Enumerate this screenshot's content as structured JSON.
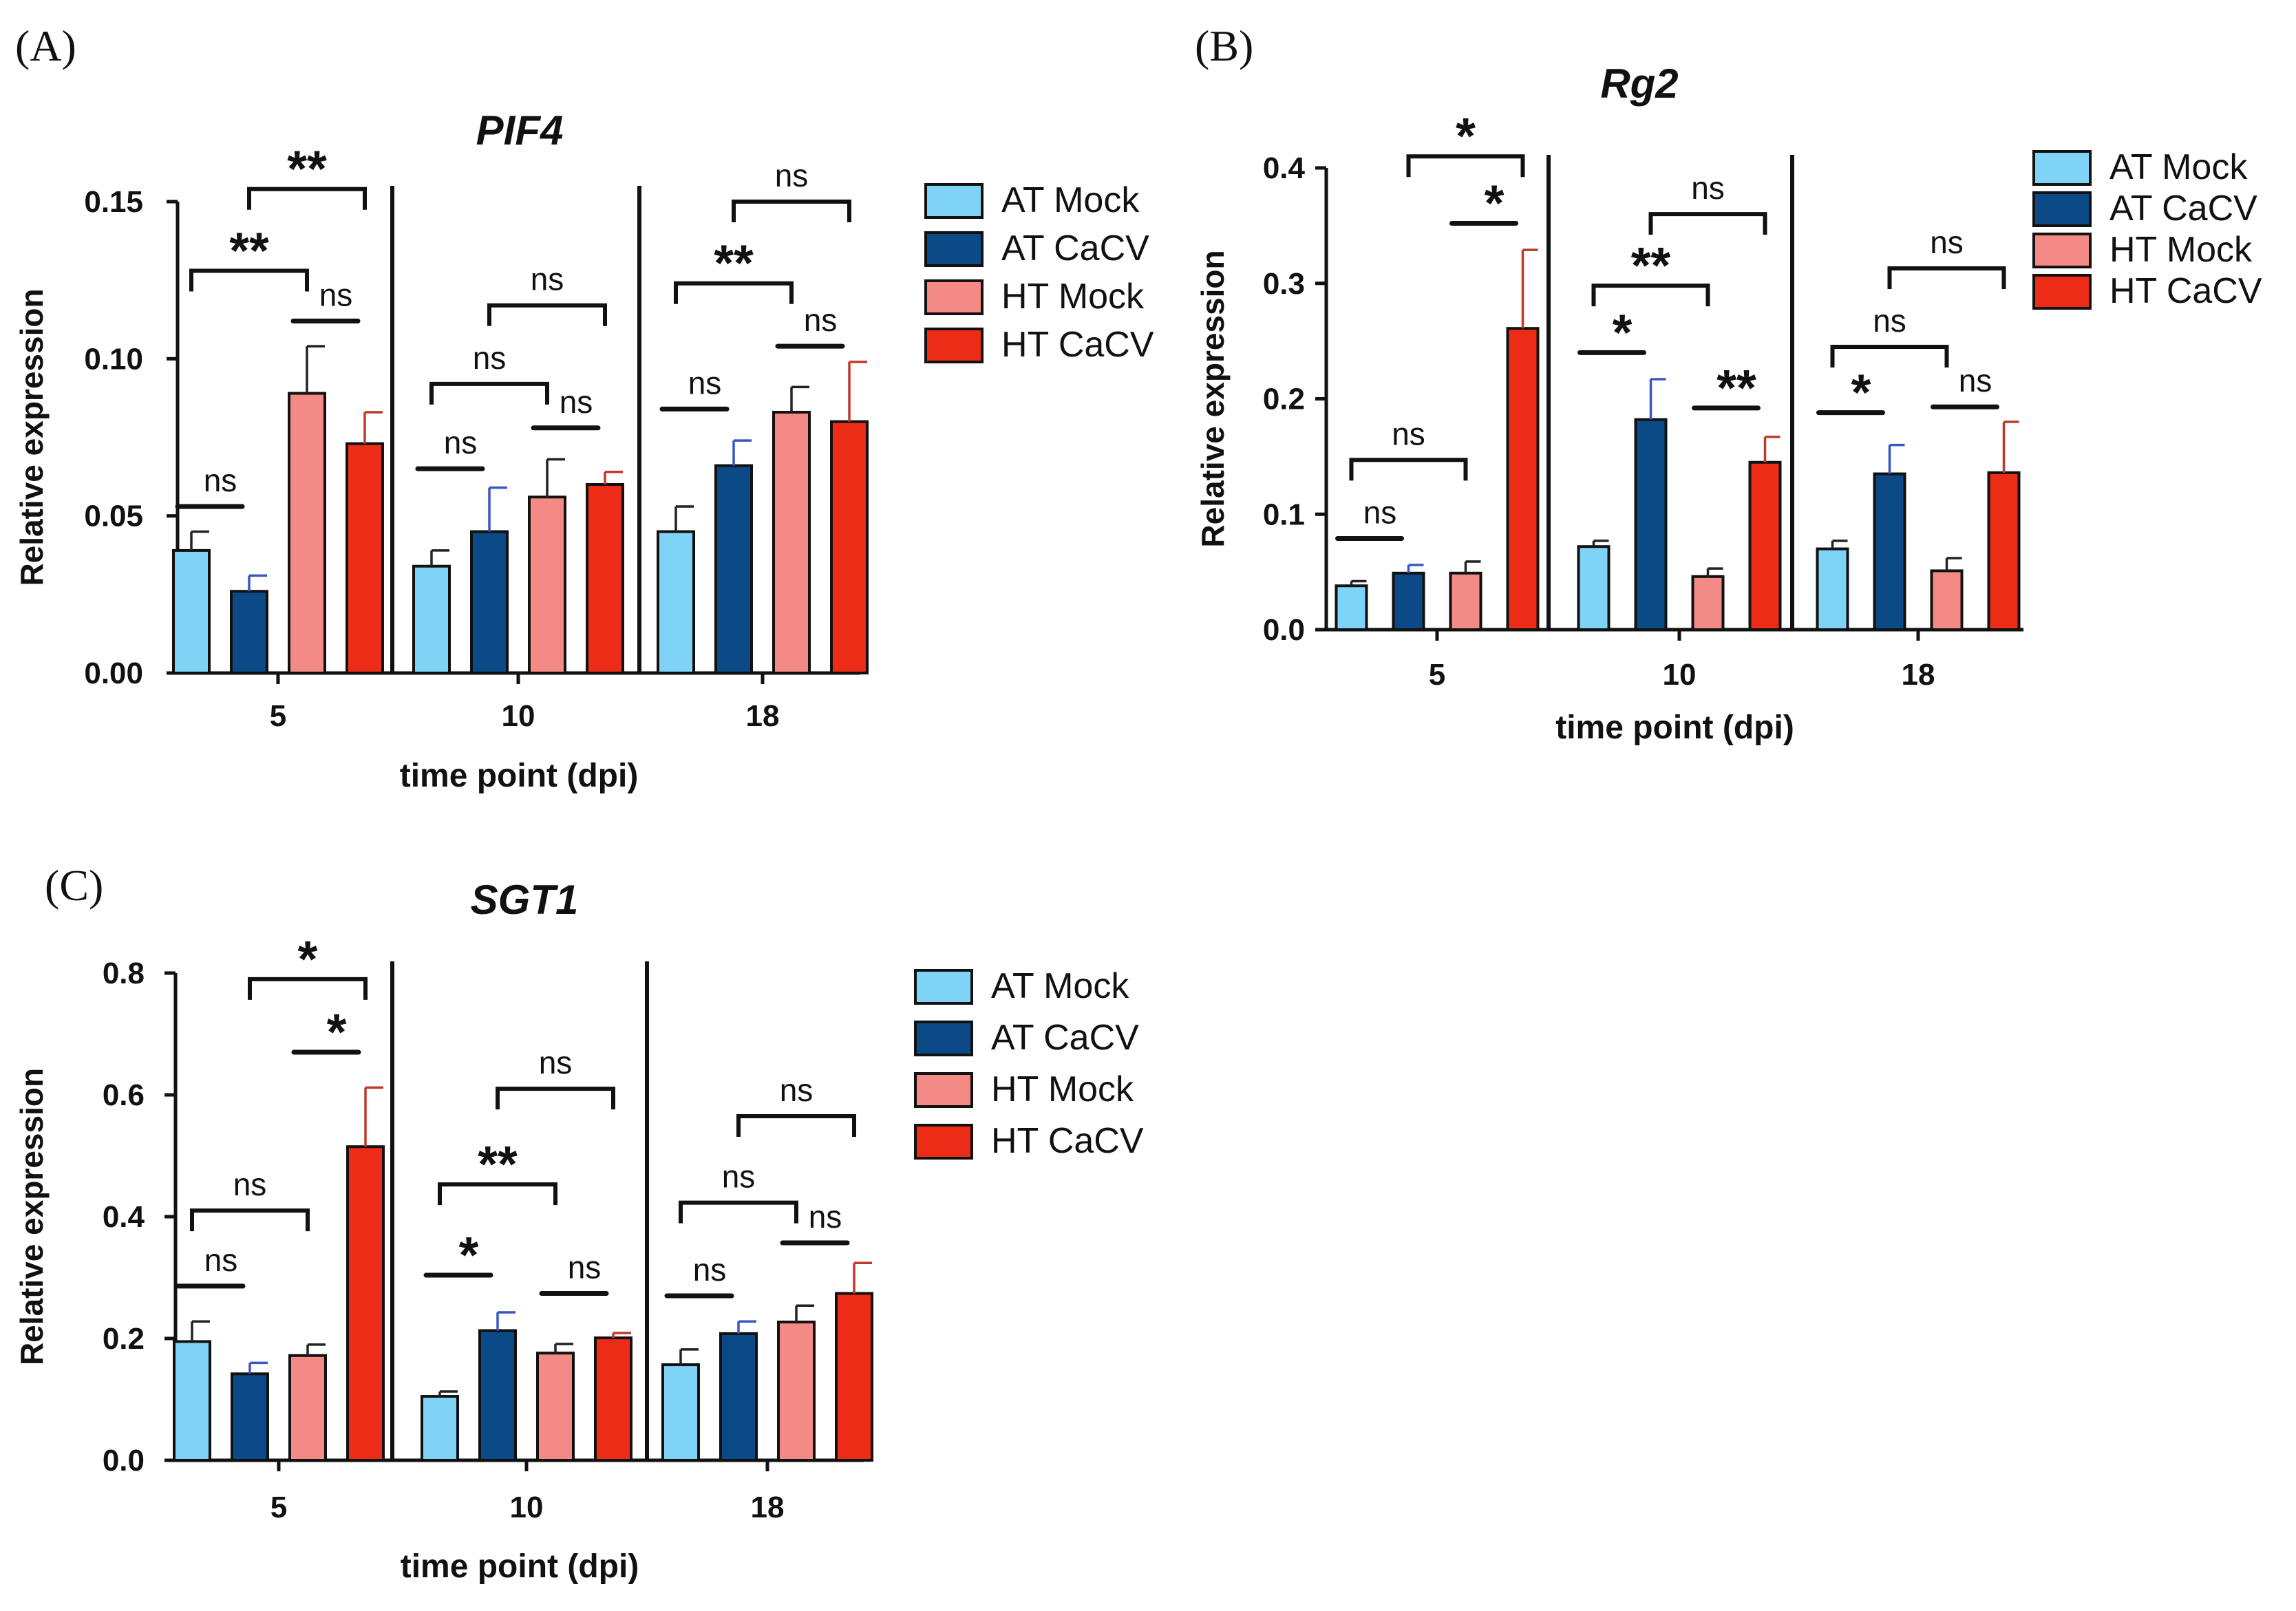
{
  "figure": {
    "legend_entries": [
      {
        "label": "AT Mock",
        "color": "#7FD3F7"
      },
      {
        "label": "AT CaCV",
        "color": "#0B4A86"
      },
      {
        "label": "HT Mock",
        "color": "#F48A85"
      },
      {
        "label": "HT CaCV",
        "color": "#EC2C17"
      }
    ]
  },
  "chart_data": [
    {
      "panel_label": "(A)",
      "type": "bar",
      "title": "PIF4",
      "xlabel": "time point (dpi)",
      "ylabel": "Relative expression",
      "categories": [
        "5",
        "10",
        "18"
      ],
      "ylim": [
        0,
        0.15
      ],
      "yticks": [
        0.0,
        0.05,
        0.1,
        0.15
      ],
      "ytick_labels": [
        "0.00",
        "0.05",
        "0.10",
        "0.15"
      ],
      "series": [
        {
          "name": "AT Mock",
          "values": [
            0.039,
            0.034,
            0.045
          ],
          "errors": [
            0.006,
            0.005,
            0.008
          ]
        },
        {
          "name": "AT CaCV",
          "values": [
            0.026,
            0.045,
            0.066
          ],
          "errors": [
            0.005,
            0.014,
            0.008
          ]
        },
        {
          "name": "HT Mock",
          "values": [
            0.089,
            0.056,
            0.083
          ],
          "errors": [
            0.015,
            0.012,
            0.008
          ]
        },
        {
          "name": "HT CaCV",
          "values": [
            0.073,
            0.06,
            0.08
          ],
          "errors": [
            0.01,
            0.004,
            0.019
          ]
        }
      ],
      "annotations": [
        {
          "group": 0,
          "from": 0,
          "to": 1,
          "text": "ns",
          "y": 0.053,
          "type": "line"
        },
        {
          "group": 0,
          "from": 0,
          "to": 2,
          "text": "**",
          "y": 0.128,
          "type": "bracket"
        },
        {
          "group": 0,
          "from": 1,
          "to": 3,
          "text": "**",
          "y": 0.154,
          "type": "bracket"
        },
        {
          "group": 0,
          "from": 2,
          "to": 3,
          "text": "ns",
          "y": 0.112,
          "type": "line"
        },
        {
          "group": 1,
          "from": 0,
          "to": 1,
          "text": "ns",
          "y": 0.065,
          "type": "line"
        },
        {
          "group": 1,
          "from": 0,
          "to": 2,
          "text": "ns",
          "y": 0.092,
          "type": "bracket"
        },
        {
          "group": 1,
          "from": 1,
          "to": 3,
          "text": "ns",
          "y": 0.117,
          "type": "bracket"
        },
        {
          "group": 1,
          "from": 2,
          "to": 3,
          "text": "ns",
          "y": 0.078,
          "type": "line"
        },
        {
          "group": 2,
          "from": 0,
          "to": 1,
          "text": "ns",
          "y": 0.084,
          "type": "line"
        },
        {
          "group": 2,
          "from": 0,
          "to": 2,
          "text": "**",
          "y": 0.124,
          "type": "bracket"
        },
        {
          "group": 2,
          "from": 1,
          "to": 3,
          "text": "ns",
          "y": 0.15,
          "type": "bracket"
        },
        {
          "group": 2,
          "from": 2,
          "to": 3,
          "text": "ns",
          "y": 0.104,
          "type": "line"
        }
      ]
    },
    {
      "panel_label": "(B)",
      "type": "bar",
      "title": "Rg2",
      "xlabel": "time point (dpi)",
      "ylabel": "Relative expression",
      "categories": [
        "5",
        "10",
        "18"
      ],
      "ylim": [
        0,
        0.4
      ],
      "yticks": [
        0.0,
        0.1,
        0.2,
        0.3,
        0.4
      ],
      "ytick_labels": [
        "0.0",
        "0.1",
        "0.2",
        "0.3",
        "0.4"
      ],
      "series": [
        {
          "name": "AT Mock",
          "values": [
            0.038,
            0.072,
            0.07
          ],
          "errors": [
            0.004,
            0.005,
            0.007
          ]
        },
        {
          "name": "AT CaCV",
          "values": [
            0.049,
            0.182,
            0.135
          ],
          "errors": [
            0.007,
            0.035,
            0.025
          ]
        },
        {
          "name": "HT Mock",
          "values": [
            0.049,
            0.046,
            0.051
          ],
          "errors": [
            0.01,
            0.007,
            0.011
          ]
        },
        {
          "name": "HT CaCV",
          "values": [
            0.261,
            0.145,
            0.136
          ],
          "errors": [
            0.068,
            0.022,
            0.044
          ]
        }
      ],
      "annotations": [
        {
          "group": 0,
          "from": 0,
          "to": 1,
          "text": "ns",
          "y": 0.079,
          "type": "line"
        },
        {
          "group": 0,
          "from": 0,
          "to": 2,
          "text": "ns",
          "y": 0.147,
          "type": "bracket"
        },
        {
          "group": 0,
          "from": 1,
          "to": 3,
          "text": "*",
          "y": 0.41,
          "type": "bracket"
        },
        {
          "group": 0,
          "from": 2,
          "to": 3,
          "text": "*",
          "y": 0.352,
          "type": "line"
        },
        {
          "group": 1,
          "from": 0,
          "to": 1,
          "text": "*",
          "y": 0.24,
          "type": "line"
        },
        {
          "group": 1,
          "from": 0,
          "to": 2,
          "text": "**",
          "y": 0.298,
          "type": "bracket"
        },
        {
          "group": 1,
          "from": 1,
          "to": 3,
          "text": "ns",
          "y": 0.36,
          "type": "bracket"
        },
        {
          "group": 1,
          "from": 2,
          "to": 3,
          "text": "**",
          "y": 0.192,
          "type": "line"
        },
        {
          "group": 2,
          "from": 0,
          "to": 1,
          "text": "*",
          "y": 0.188,
          "type": "line"
        },
        {
          "group": 2,
          "from": 0,
          "to": 2,
          "text": "ns",
          "y": 0.245,
          "type": "bracket"
        },
        {
          "group": 2,
          "from": 1,
          "to": 3,
          "text": "ns",
          "y": 0.313,
          "type": "bracket"
        },
        {
          "group": 2,
          "from": 2,
          "to": 3,
          "text": "ns",
          "y": 0.193,
          "type": "line"
        }
      ]
    },
    {
      "panel_label": "(C)",
      "type": "bar",
      "title": "SGT1",
      "xlabel": "time point (dpi)",
      "ylabel": "Relative expression",
      "categories": [
        "5",
        "10",
        "18"
      ],
      "ylim": [
        0,
        0.8
      ],
      "yticks": [
        0.0,
        0.2,
        0.4,
        0.6,
        0.8
      ],
      "ytick_labels": [
        "0.0",
        "0.2",
        "0.4",
        "0.6",
        "0.8"
      ],
      "series": [
        {
          "name": "AT Mock",
          "values": [
            0.195,
            0.105,
            0.157
          ],
          "errors": [
            0.033,
            0.008,
            0.025
          ]
        },
        {
          "name": "AT CaCV",
          "values": [
            0.142,
            0.213,
            0.208
          ],
          "errors": [
            0.018,
            0.03,
            0.02
          ]
        },
        {
          "name": "HT Mock",
          "values": [
            0.172,
            0.176,
            0.227
          ],
          "errors": [
            0.018,
            0.015,
            0.027
          ]
        },
        {
          "name": "HT CaCV",
          "values": [
            0.515,
            0.201,
            0.274
          ],
          "errors": [
            0.097,
            0.008,
            0.05
          ]
        }
      ],
      "annotations": [
        {
          "group": 0,
          "from": 0,
          "to": 1,
          "text": "ns",
          "y": 0.286,
          "type": "line"
        },
        {
          "group": 0,
          "from": 0,
          "to": 2,
          "text": "ns",
          "y": 0.41,
          "type": "bracket"
        },
        {
          "group": 0,
          "from": 1,
          "to": 3,
          "text": "*",
          "y": 0.79,
          "type": "bracket"
        },
        {
          "group": 0,
          "from": 2,
          "to": 3,
          "text": "*",
          "y": 0.67,
          "type": "line"
        },
        {
          "group": 1,
          "from": 0,
          "to": 1,
          "text": "*",
          "y": 0.304,
          "type": "line"
        },
        {
          "group": 1,
          "from": 0,
          "to": 2,
          "text": "**",
          "y": 0.453,
          "type": "bracket"
        },
        {
          "group": 1,
          "from": 1,
          "to": 3,
          "text": "ns",
          "y": 0.61,
          "type": "bracket"
        },
        {
          "group": 1,
          "from": 2,
          "to": 3,
          "text": "ns",
          "y": 0.274,
          "type": "line"
        },
        {
          "group": 2,
          "from": 0,
          "to": 1,
          "text": "ns",
          "y": 0.27,
          "type": "line"
        },
        {
          "group": 2,
          "from": 0,
          "to": 2,
          "text": "ns",
          "y": 0.423,
          "type": "bracket"
        },
        {
          "group": 2,
          "from": 1,
          "to": 3,
          "text": "ns",
          "y": 0.565,
          "type": "bracket"
        },
        {
          "group": 2,
          "from": 2,
          "to": 3,
          "text": "ns",
          "y": 0.357,
          "type": "line"
        }
      ]
    }
  ]
}
